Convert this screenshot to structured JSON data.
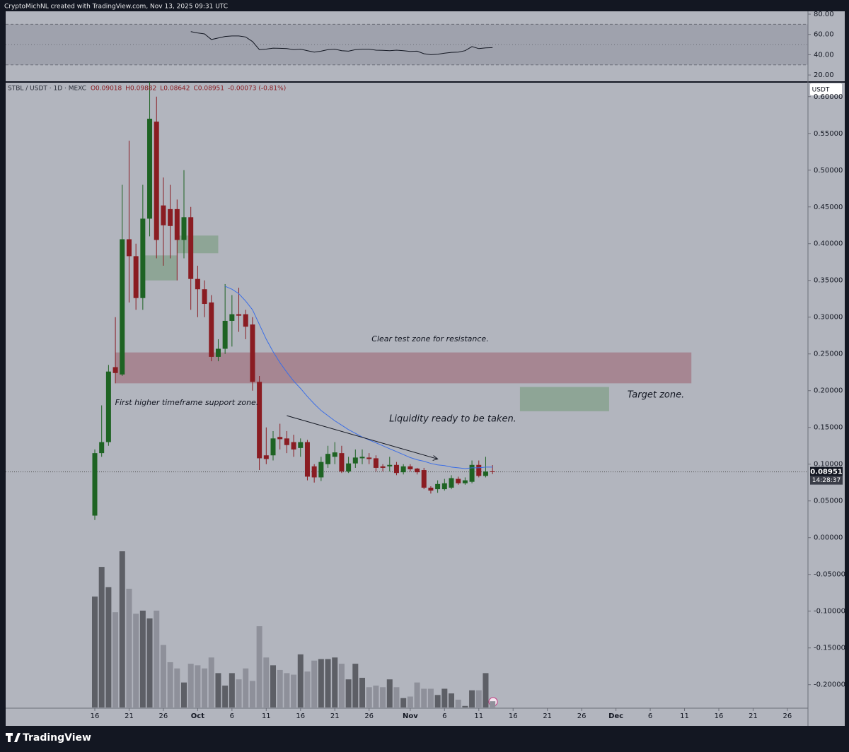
{
  "header": {
    "credit": "CryptoMichNL created with TradingView.com, Nov 13, 2025 09:31 UTC"
  },
  "footer": {
    "brand": "TradingView"
  },
  "chart_data": [
    {
      "type": "line",
      "x": [
        "09-16",
        "09-17",
        "09-18",
        "09-19",
        "09-20",
        "09-21",
        "09-22",
        "09-23",
        "09-24",
        "09-25",
        "09-26",
        "09-27",
        "09-28",
        "09-29",
        "09-30",
        "10-01",
        "10-02",
        "10-03",
        "10-04",
        "10-05",
        "10-06",
        "10-07",
        "10-08",
        "10-09",
        "10-10",
        "10-11",
        "10-12",
        "10-13",
        "10-14",
        "10-15",
        "10-16",
        "10-17",
        "10-18",
        "10-19",
        "10-20",
        "10-21",
        "10-22",
        "10-23",
        "10-24",
        "10-25",
        "10-26",
        "10-27",
        "10-28",
        "10-29",
        "10-30",
        "10-31",
        "11-01",
        "11-02",
        "11-03",
        "11-04",
        "11-05",
        "11-06",
        "11-07",
        "11-08",
        "11-09",
        "11-10",
        "11-11",
        "11-12",
        "11-13"
      ],
      "values": [
        null,
        null,
        null,
        null,
        null,
        null,
        null,
        null,
        null,
        null,
        null,
        null,
        null,
        null,
        62.8,
        61.5,
        60.5,
        55,
        56.5,
        58,
        58.5,
        58.5,
        57.5,
        53,
        45,
        45.5,
        46.5,
        46.3,
        46,
        45,
        45.5,
        44,
        42.5,
        43.5,
        45,
        45.5,
        44,
        43.5,
        45,
        45.5,
        45.5,
        44.5,
        44.3,
        44,
        44.5,
        44,
        43.3,
        43.5,
        41,
        40,
        40.5,
        41.5,
        42.3,
        42.5,
        44,
        48,
        46,
        46.8,
        47
      ],
      "color": "#131722",
      "band": {
        "upper": 70,
        "middle": 50,
        "lower": 30,
        "color": "rgba(110,114,128,0.28)"
      },
      "ylim": [
        13.8,
        82.8
      ],
      "yticks": [
        {
          "value": 20,
          "label": "20.00"
        },
        {
          "value": 40,
          "label": "40.00"
        },
        {
          "value": 60,
          "label": "60.00"
        },
        {
          "value": 80,
          "label": "80.00"
        }
      ]
    },
    {
      "type": "candlestick",
      "title": "STBL / USDT · 1D · MEXC",
      "legend_values": [
        "O0.09018",
        "H0.09882",
        "L0.08642",
        "C0.08951",
        "-0.00073 (-0.81%)"
      ],
      "currency": "USDT",
      "x": [
        "09-16",
        "09-17",
        "09-18",
        "09-19",
        "09-20",
        "09-21",
        "09-22",
        "09-23",
        "09-24",
        "09-25",
        "09-26",
        "09-27",
        "09-28",
        "09-29",
        "09-30",
        "10-01",
        "10-02",
        "10-03",
        "10-04",
        "10-05",
        "10-06",
        "10-07",
        "10-08",
        "10-09",
        "10-10",
        "10-11",
        "10-12",
        "10-13",
        "10-14",
        "10-15",
        "10-16",
        "10-17",
        "10-18",
        "10-19",
        "10-20",
        "10-21",
        "10-22",
        "10-23",
        "10-24",
        "10-25",
        "10-26",
        "10-27",
        "10-28",
        "10-29",
        "10-30",
        "10-31",
        "11-01",
        "11-02",
        "11-03",
        "11-04",
        "11-05",
        "11-06",
        "11-07",
        "11-08",
        "11-09",
        "11-10",
        "11-11",
        "11-12",
        "11-13"
      ],
      "open": [
        0.03,
        0.115,
        0.13,
        0.232,
        0.222,
        0.406,
        0.383,
        0.326,
        0.434,
        0.566,
        0.452,
        0.447,
        0.447,
        0.405,
        0.436,
        0.352,
        0.338,
        0.32,
        0.246,
        0.257,
        0.295,
        0.304,
        0.304,
        0.29,
        0.212,
        0.112,
        0.112,
        0.137,
        0.135,
        0.13,
        0.122,
        0.13,
        0.097,
        0.082,
        0.1,
        0.11,
        0.115,
        0.09,
        0.101,
        0.108,
        0.109,
        0.108,
        0.097,
        0.097,
        0.099,
        0.089,
        0.097,
        0.094,
        0.092,
        0.068,
        0.066,
        0.066,
        0.068,
        0.08,
        0.074,
        0.076,
        0.099,
        0.084,
        0.09018
      ],
      "high": [
        0.12,
        0.18,
        0.235,
        0.3,
        0.48,
        0.54,
        0.4,
        0.48,
        0.62,
        0.6,
        0.49,
        0.48,
        0.46,
        0.5,
        0.45,
        0.37,
        0.35,
        0.33,
        0.27,
        0.345,
        0.33,
        0.34,
        0.31,
        0.3,
        0.22,
        0.15,
        0.145,
        0.155,
        0.145,
        0.14,
        0.135,
        0.133,
        0.1,
        0.11,
        0.125,
        0.13,
        0.125,
        0.11,
        0.12,
        0.12,
        0.115,
        0.112,
        0.1,
        0.11,
        0.103,
        0.1,
        0.1,
        0.095,
        0.095,
        0.07,
        0.078,
        0.08,
        0.085,
        0.083,
        0.082,
        0.105,
        0.105,
        0.11,
        0.09882
      ],
      "low": [
        0.024,
        0.11,
        0.125,
        0.21,
        0.22,
        0.32,
        0.31,
        0.31,
        0.41,
        0.38,
        0.37,
        0.38,
        0.35,
        0.38,
        0.31,
        0.3,
        0.3,
        0.24,
        0.24,
        0.25,
        0.26,
        0.28,
        0.27,
        0.2,
        0.092,
        0.1,
        0.105,
        0.12,
        0.115,
        0.11,
        0.11,
        0.078,
        0.075,
        0.077,
        0.095,
        0.1,
        0.088,
        0.088,
        0.095,
        0.1,
        0.1,
        0.09,
        0.09,
        0.09,
        0.085,
        0.086,
        0.09,
        0.086,
        0.066,
        0.06,
        0.061,
        0.064,
        0.066,
        0.072,
        0.072,
        0.074,
        0.082,
        0.082,
        0.08642
      ],
      "close": [
        0.115,
        0.13,
        0.226,
        0.224,
        0.406,
        0.383,
        0.326,
        0.434,
        0.57,
        0.405,
        0.425,
        0.424,
        0.405,
        0.436,
        0.352,
        0.338,
        0.318,
        0.246,
        0.257,
        0.295,
        0.304,
        0.302,
        0.287,
        0.212,
        0.108,
        0.107,
        0.135,
        0.134,
        0.126,
        0.12,
        0.13,
        0.083,
        0.082,
        0.103,
        0.114,
        0.116,
        0.09,
        0.101,
        0.109,
        0.11,
        0.107,
        0.095,
        0.095,
        0.099,
        0.088,
        0.097,
        0.093,
        0.089,
        0.068,
        0.064,
        0.073,
        0.074,
        0.081,
        0.074,
        0.078,
        0.099,
        0.084,
        0.09,
        0.08951
      ],
      "up_color": "#1e6323",
      "down_color": "#8a1c22",
      "volume": {
        "values": [
          71,
          90,
          77,
          61,
          100,
          76,
          60,
          62,
          57,
          62,
          40,
          29,
          25,
          16,
          28,
          27,
          25,
          32,
          22,
          14,
          22,
          18,
          25,
          17,
          52,
          32,
          27,
          24,
          22,
          21,
          34,
          23,
          30,
          31,
          31,
          32,
          28,
          18,
          28,
          19,
          13,
          14,
          13,
          18,
          13,
          6,
          7,
          16,
          12,
          12,
          8,
          12,
          9,
          5,
          1,
          11,
          11,
          22,
          4
        ],
        "up_color": "#5d5f66",
        "down_color": "#8e909a"
      },
      "ema": {
        "values": [
          null,
          null,
          null,
          null,
          null,
          null,
          null,
          null,
          null,
          null,
          null,
          null,
          null,
          null,
          null,
          null,
          null,
          null,
          null,
          0.342,
          0.338,
          0.332,
          0.322,
          0.31,
          0.29,
          0.27,
          0.253,
          0.238,
          0.225,
          0.213,
          0.203,
          0.192,
          0.182,
          0.173,
          0.166,
          0.159,
          0.153,
          0.147,
          0.142,
          0.137,
          0.133,
          0.129,
          0.125,
          0.121,
          0.117,
          0.113,
          0.109,
          0.106,
          0.104,
          0.101,
          0.099,
          0.098,
          0.096,
          0.095,
          0.094,
          0.095,
          0.095,
          0.096,
          0.096
        ],
        "color": "#3b6ee6"
      },
      "zones": [
        {
          "x": [
            "09-19",
            "12-12"
          ],
          "y": [
            0.21,
            0.252
          ],
          "color": "rgba(150,70,85,0.42)"
        },
        {
          "x": [
            "11-17",
            "11-30"
          ],
          "y": [
            0.172,
            0.205
          ],
          "color": "rgba(105,150,110,0.5)"
        },
        {
          "x": [
            "09-23",
            "09-28"
          ],
          "y": [
            0.35,
            0.384
          ],
          "color": "rgba(105,150,110,0.5)"
        },
        {
          "x": [
            "09-28",
            "10-04"
          ],
          "y": [
            0.387,
            0.411
          ],
          "color": "rgba(105,150,110,0.5)"
        }
      ],
      "trendline": {
        "x": [
          "10-14",
          "11-05"
        ],
        "y": [
          0.166,
          0.107
        ],
        "color": "#131722"
      },
      "annotations": [
        "Clear test zone for resistance.",
        "Target zone.",
        "First higher timeframe support zone.",
        "Liquidity ready to be taken."
      ],
      "last_price": 0.08951,
      "countdown": "14:28:37",
      "xlim": [
        "09-03",
        "12-29"
      ],
      "xticks": [
        {
          "value": "09-16",
          "label": "16"
        },
        {
          "value": "09-21",
          "label": "21"
        },
        {
          "value": "09-26",
          "label": "26"
        },
        {
          "value": "10-01",
          "label": "Oct"
        },
        {
          "value": "10-06",
          "label": "6"
        },
        {
          "value": "10-11",
          "label": "11"
        },
        {
          "value": "10-16",
          "label": "16"
        },
        {
          "value": "10-21",
          "label": "21"
        },
        {
          "value": "10-26",
          "label": "26"
        },
        {
          "value": "11-01",
          "label": "Nov"
        },
        {
          "value": "11-06",
          "label": "6"
        },
        {
          "value": "11-11",
          "label": "11"
        },
        {
          "value": "11-16",
          "label": "16"
        },
        {
          "value": "11-21",
          "label": "21"
        },
        {
          "value": "11-26",
          "label": "26"
        },
        {
          "value": "12-01",
          "label": "Dec"
        },
        {
          "value": "12-06",
          "label": "6"
        },
        {
          "value": "12-11",
          "label": "11"
        },
        {
          "value": "12-16",
          "label": "16"
        },
        {
          "value": "12-21",
          "label": "21"
        },
        {
          "value": "12-26",
          "label": "26"
        }
      ],
      "ylim": [
        -0.232,
        0.619
      ],
      "yticks": [
        {
          "value": -0.2,
          "label": "-0.20000"
        },
        {
          "value": -0.15,
          "label": "-0.15000"
        },
        {
          "value": -0.1,
          "label": "-0.10000"
        },
        {
          "value": -0.05,
          "label": "-0.05000"
        },
        {
          "value": 0,
          "label": "0.00000"
        },
        {
          "value": 0.05,
          "label": "0.05000"
        },
        {
          "value": 0.1,
          "label": "0.10000"
        },
        {
          "value": 0.15,
          "label": "0.15000"
        },
        {
          "value": 0.2,
          "label": "0.20000"
        },
        {
          "value": 0.25,
          "label": "0.25000"
        },
        {
          "value": 0.3,
          "label": "0.30000"
        },
        {
          "value": 0.35,
          "label": "0.35000"
        },
        {
          "value": 0.4,
          "label": "0.40000"
        },
        {
          "value": 0.45,
          "label": "0.45000"
        },
        {
          "value": 0.5,
          "label": "0.50000"
        },
        {
          "value": 0.55,
          "label": "0.55000"
        },
        {
          "value": 0.6,
          "label": "0.60000"
        }
      ]
    }
  ]
}
